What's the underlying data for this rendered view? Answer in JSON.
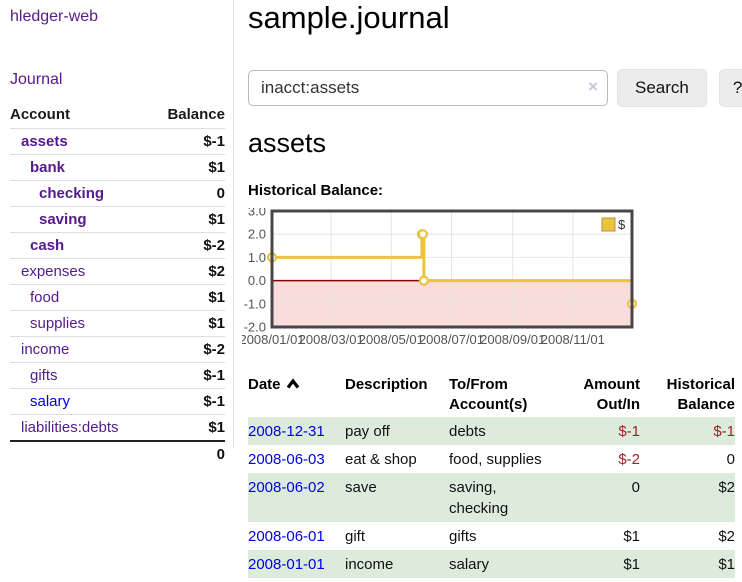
{
  "app": {
    "title": "hledger-web",
    "nav_journal": "Journal"
  },
  "sidebar": {
    "columns": {
      "account": "Account",
      "balance": "Balance"
    },
    "accounts": [
      {
        "name": "assets",
        "depth": 1,
        "bold": true,
        "balance": "$-1",
        "balance_style": "neg-strong"
      },
      {
        "name": "bank",
        "depth": 2,
        "bold": true,
        "balance": "$1",
        "balance_style": "pos"
      },
      {
        "name": "checking",
        "depth": 3,
        "bold": true,
        "balance": "0",
        "balance_style": "pos"
      },
      {
        "name": "saving",
        "depth": 3,
        "bold": true,
        "balance": "$1",
        "balance_style": "pos"
      },
      {
        "name": "cash",
        "depth": 2,
        "bold": true,
        "balance": "$-2",
        "balance_style": "neg-strong"
      },
      {
        "name": "expenses",
        "depth": 1,
        "bold": false,
        "balance": "$2",
        "balance_style": "pos"
      },
      {
        "name": "food",
        "depth": 2,
        "bold": false,
        "balance": "$1",
        "balance_style": "pos"
      },
      {
        "name": "supplies",
        "depth": 2,
        "bold": false,
        "balance": "$1",
        "balance_style": "pos"
      },
      {
        "name": "income",
        "depth": 1,
        "bold": false,
        "balance": "$-2",
        "balance_style": "neg-soft"
      },
      {
        "name": "gifts",
        "depth": 2,
        "bold": false,
        "balance": "$-1",
        "balance_style": "neg-soft"
      },
      {
        "name": "salary",
        "depth": 2,
        "bold": false,
        "balance": "$-1",
        "balance_style": "neg-soft",
        "link": "unvisited"
      },
      {
        "name": "liabilities:debts",
        "depth": 1,
        "bold": false,
        "balance": "$1",
        "balance_style": "pos"
      }
    ],
    "total": "0"
  },
  "header": {
    "title": "sample.journal"
  },
  "search": {
    "value": "inacct:assets",
    "clear_icon": "×",
    "button_label": "Search",
    "help_label": "?"
  },
  "account_page": {
    "title": "assets",
    "chart_label": "Historical Balance:"
  },
  "chart_data": {
    "type": "line",
    "title": "Historical Balance:",
    "xrange": [
      "2008-01-01",
      "2008-12-31"
    ],
    "ylim": [
      -2,
      3
    ],
    "yticks": [
      "3.0",
      "2.0",
      "1.0",
      "0.0",
      "-1.0",
      "-2.0"
    ],
    "xticks": [
      "2008/01/01",
      "2008/03/01",
      "2008/05/01",
      "2008/07/01",
      "2008/09/01",
      "2008/11/01"
    ],
    "series": [
      {
        "name": "$",
        "color": "#EDC240",
        "step": true,
        "points": [
          {
            "x": "2008-01-01",
            "y": 1
          },
          {
            "x": "2008-06-01",
            "y": 2
          },
          {
            "x": "2008-06-02",
            "y": 2
          },
          {
            "x": "2008-06-03",
            "y": 0
          },
          {
            "x": "2008-12-31",
            "y": -1
          }
        ]
      }
    ],
    "legend": "$",
    "legend_position": "top-right",
    "grid": true,
    "zero_line_color": "#8b0000",
    "negative_region_fill": "#f9dcdc"
  },
  "register": {
    "headers": {
      "date": "Date",
      "description": "Description",
      "account": "To/From Account(s)",
      "amount": "Amount Out/In",
      "balance": "Historical Balance"
    },
    "rows": [
      {
        "date": "2008-12-31",
        "description": "pay off",
        "accounts": "debts",
        "amount": "$-1",
        "amount_neg": true,
        "balance": "$-1",
        "balance_neg": true
      },
      {
        "date": "2008-06-03",
        "description": "eat & shop",
        "accounts": "food, supplies",
        "amount": "$-2",
        "amount_neg": true,
        "balance": "0",
        "balance_neg": false
      },
      {
        "date": "2008-06-02",
        "description": "save",
        "accounts": "saving,\nchecking",
        "amount": "0",
        "amount_neg": false,
        "balance": "$2",
        "balance_neg": false
      },
      {
        "date": "2008-06-01",
        "description": "gift",
        "accounts": "gifts",
        "amount": "$1",
        "amount_neg": false,
        "balance": "$2",
        "balance_neg": false
      },
      {
        "date": "2008-01-01",
        "description": "income",
        "accounts": "salary",
        "amount": "$1",
        "amount_neg": false,
        "balance": "$1",
        "balance_neg": false
      }
    ]
  }
}
